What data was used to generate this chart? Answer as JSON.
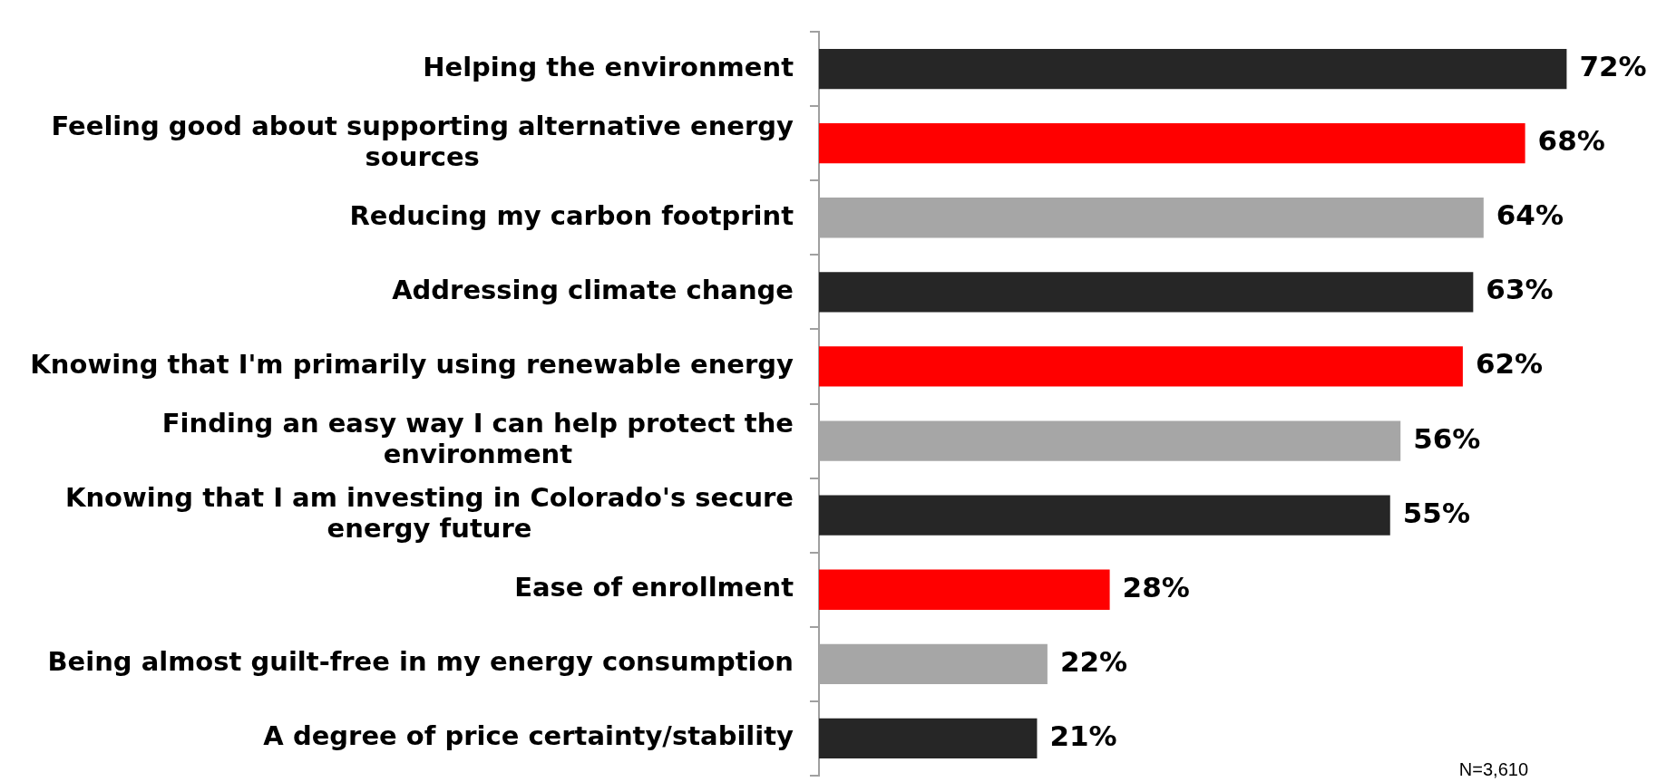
{
  "chart_data": {
    "type": "bar",
    "orientation": "horizontal",
    "categories": [
      "Helping the environment",
      "Feeling good about supporting alternative energy sources",
      "Reducing my carbon footprint",
      "Addressing climate change",
      "Knowing that I'm primarily using renewable energy",
      "Finding an easy way I can help protect the environment",
      "Knowing that I am investing in Colorado's secure energy future",
      "Ease of enrollment",
      "Being almost guilt-free in my energy consumption",
      "A degree of price certainty/stability"
    ],
    "values": [
      72,
      68,
      64,
      63,
      62,
      56,
      55,
      28,
      22,
      21
    ],
    "colors": [
      "#262626",
      "#ff0000",
      "#a6a6a6",
      "#262626",
      "#ff0000",
      "#a6a6a6",
      "#262626",
      "#ff0000",
      "#a6a6a6",
      "#262626"
    ],
    "value_labels": [
      "72%",
      "68%",
      "64%",
      "63%",
      "62%",
      "56%",
      "55%",
      "28%",
      "22%",
      "21%"
    ],
    "annotations": [
      "N=3,610"
    ],
    "tick_labels": "y",
    "legend": false,
    "grid": false
  }
}
